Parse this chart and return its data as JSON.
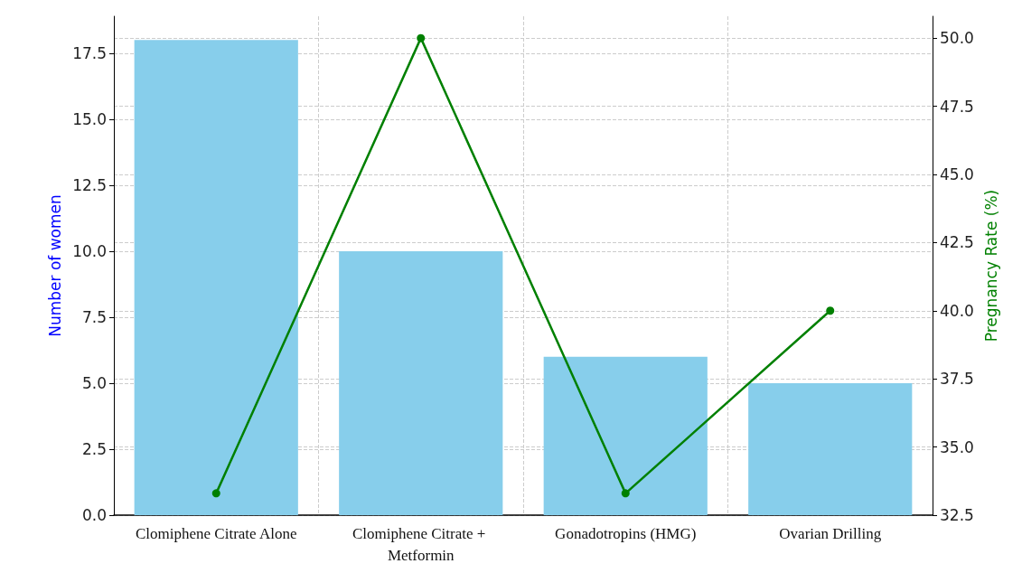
{
  "chart_data": {
    "type": "bar",
    "categories": [
      "Clomiphene Citrate Alone",
      "Clomiphene Citrate + Metformin",
      "Gonadotropins (HMG)",
      "Ovarian Drilling"
    ],
    "series": [
      {
        "color": "#87ceeb",
        "values": [
          18,
          10,
          6,
          5
        ]
      },
      {
        "type": "line",
        "axis": "y2",
        "color": "#008000",
        "values": [
          33.3,
          50,
          33.3,
          40
        ]
      }
    ],
    "ylabel": "Number of women",
    "y2label": "Pregnancy Rate (%)",
    "ylim": [
      0,
      18.9
    ],
    "yticks": [
      {
        "value": 0,
        "label": "0.0"
      },
      2.5,
      {
        "value": 5,
        "label": "5.0"
      },
      7.5,
      {
        "value": 10,
        "label": "10.0"
      },
      12.5,
      {
        "value": 15,
        "label": "15.0"
      },
      17.5
    ],
    "y2lim": [
      32.5,
      50.8
    ],
    "y2ticks": [
      32.5,
      {
        "value": 35,
        "label": "35.0"
      },
      37.5,
      {
        "value": 40,
        "label": "40.0"
      },
      42.5,
      {
        "value": 45,
        "label": "45.0"
      },
      47.5,
      {
        "value": 50,
        "label": "50.0"
      }
    ],
    "grid": true,
    "marker": "circle",
    "line_style": "solid"
  }
}
